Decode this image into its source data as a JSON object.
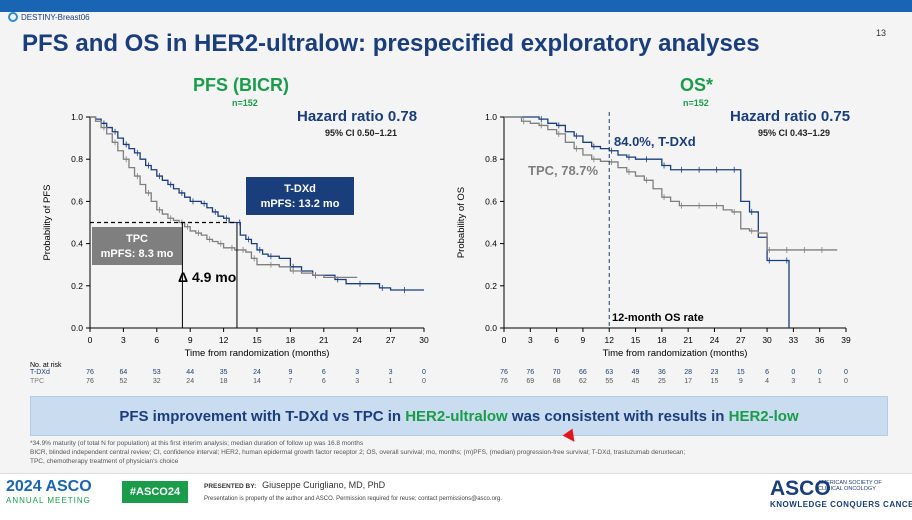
{
  "header": {
    "brand": "DESTINY-Breast06",
    "slide_number": "13",
    "title": "PFS and OS in HER2-ultralow: prespecified exploratory analyses"
  },
  "chart_data": [
    {
      "type": "line",
      "title": "PFS (BICR)",
      "subtitle": "n=152",
      "hazard_ratio": "Hazard ratio 0.78",
      "ci": "95% CI 0.50–1.21",
      "xlabel": "Time from randomization (months)",
      "ylabel": "Probability of PFS",
      "xlim": [
        0,
        30
      ],
      "ylim": [
        0,
        1.0
      ],
      "xticks": [
        0,
        3,
        6,
        9,
        12,
        15,
        18,
        21,
        24,
        27,
        30
      ],
      "yticks": [
        0,
        0.2,
        0.4,
        0.6,
        0.8,
        1.0
      ],
      "series": [
        {
          "name": "T-DXd",
          "color": "#1a3d7c",
          "x": [
            0,
            0.5,
            1,
            1.5,
            2,
            2.5,
            3,
            3.5,
            4,
            4.5,
            5,
            5.5,
            6,
            6.5,
            7,
            7.5,
            8,
            8.5,
            9,
            9.5,
            10,
            10.5,
            11,
            11.5,
            12,
            12.5,
            13.2,
            13.5,
            14,
            14.5,
            15,
            15.5,
            16,
            17,
            18,
            19,
            20,
            21,
            22,
            23,
            24,
            25,
            26,
            27,
            28,
            29,
            30
          ],
          "y": [
            1.0,
            0.99,
            0.97,
            0.95,
            0.93,
            0.9,
            0.87,
            0.85,
            0.83,
            0.8,
            0.77,
            0.75,
            0.72,
            0.7,
            0.68,
            0.66,
            0.64,
            0.62,
            0.6,
            0.6,
            0.59,
            0.57,
            0.55,
            0.53,
            0.52,
            0.5,
            0.5,
            0.44,
            0.42,
            0.4,
            0.37,
            0.35,
            0.34,
            0.33,
            0.29,
            0.27,
            0.25,
            0.25,
            0.23,
            0.21,
            0.21,
            0.21,
            0.19,
            0.18,
            0.18,
            0.18,
            0.18
          ]
        },
        {
          "name": "TPC",
          "color": "#7f7f7f",
          "x": [
            0,
            0.5,
            1,
            1.5,
            2,
            2.5,
            3,
            3.5,
            4,
            4.5,
            5,
            5.5,
            6,
            6.5,
            7,
            7.5,
            8,
            8.3,
            8.5,
            9,
            9.5,
            10,
            10.5,
            11,
            11.5,
            12,
            12.5,
            13,
            13.5,
            14,
            14.5,
            15,
            16,
            17,
            18,
            19,
            20,
            21,
            24
          ],
          "y": [
            1.0,
            0.98,
            0.95,
            0.92,
            0.88,
            0.84,
            0.8,
            0.76,
            0.72,
            0.68,
            0.64,
            0.6,
            0.56,
            0.54,
            0.52,
            0.51,
            0.5,
            0.5,
            0.48,
            0.46,
            0.45,
            0.44,
            0.42,
            0.41,
            0.4,
            0.38,
            0.38,
            0.37,
            0.37,
            0.36,
            0.33,
            0.3,
            0.3,
            0.29,
            0.27,
            0.26,
            0.25,
            0.24,
            0.24
          ]
        }
      ],
      "annotations": {
        "tdxd_label": "T-DXd",
        "tdxd_value": "mPFS: 13.2 mo",
        "tpc_label": "TPC",
        "tpc_value": "mPFS: 8.3 mo",
        "delta": "Δ 4.9 mo"
      },
      "risk_table": {
        "label": "No. at risk",
        "rows": [
          {
            "name": "T-DXd",
            "values": [
              "76",
              "64",
              "53",
              "44",
              "35",
              "24",
              "9",
              "6",
              "3",
              "3",
              "0"
            ]
          },
          {
            "name": "TPC",
            "values": [
              "76",
              "52",
              "32",
              "24",
              "18",
              "14",
              "7",
              "6",
              "3",
              "1",
              "0"
            ]
          }
        ]
      }
    },
    {
      "type": "line",
      "title": "OS*",
      "subtitle": "n=152",
      "hazard_ratio": "Hazard ratio 0.75",
      "ci": "95% CI 0.43–1.29",
      "xlabel": "Time from randomization (months)",
      "ylabel": "Probability of OS",
      "xlim": [
        0,
        39
      ],
      "ylim": [
        0,
        1.0
      ],
      "xticks": [
        0,
        3,
        6,
        9,
        12,
        15,
        18,
        21,
        24,
        27,
        30,
        33,
        36,
        39
      ],
      "yticks": [
        0,
        0.2,
        0.4,
        0.6,
        0.8,
        1.0
      ],
      "series": [
        {
          "name": "T-DXd",
          "color": "#1a3d7c",
          "x": [
            0,
            2,
            4,
            5,
            6,
            7,
            8,
            9,
            10,
            11,
            12,
            13,
            14,
            15,
            16,
            17,
            18,
            19,
            20,
            21,
            22,
            23,
            24,
            25,
            26,
            27,
            28,
            29,
            30,
            31,
            32,
            32.5
          ],
          "y": [
            1.0,
            1.0,
            0.99,
            0.97,
            0.96,
            0.93,
            0.91,
            0.88,
            0.86,
            0.85,
            0.84,
            0.82,
            0.81,
            0.8,
            0.8,
            0.8,
            0.77,
            0.75,
            0.75,
            0.75,
            0.75,
            0.75,
            0.75,
            0.75,
            0.75,
            0.6,
            0.55,
            0.43,
            0.32,
            0.32,
            0.32,
            0.0
          ]
        },
        {
          "name": "TPC",
          "color": "#7f7f7f",
          "x": [
            0,
            1,
            2,
            3,
            4,
            5,
            6,
            7,
            8,
            9,
            10,
            11,
            12,
            13,
            14,
            15,
            16,
            17,
            18,
            19,
            20,
            21,
            22,
            23,
            24,
            25,
            26,
            27,
            28,
            29,
            30,
            31,
            32,
            33,
            34,
            35,
            36,
            37,
            38
          ],
          "y": [
            1.0,
            1.0,
            0.98,
            0.97,
            0.96,
            0.94,
            0.92,
            0.88,
            0.85,
            0.82,
            0.8,
            0.79,
            0.787,
            0.76,
            0.74,
            0.72,
            0.7,
            0.66,
            0.62,
            0.6,
            0.58,
            0.58,
            0.58,
            0.58,
            0.58,
            0.56,
            0.55,
            0.47,
            0.46,
            0.45,
            0.37,
            0.37,
            0.37,
            0.37,
            0.37,
            0.37,
            0.37,
            0.37,
            0.37
          ]
        }
      ],
      "annotations": {
        "tdxd_rate": "84.0%, T-DXd",
        "tpc_rate": "TPC, 78.7%",
        "rate_label": "12-month OS rate"
      },
      "risk_table": {
        "rows": [
          {
            "name": "T-DXd",
            "values": [
              "76",
              "76",
              "70",
              "66",
              "63",
              "49",
              "36",
              "28",
              "23",
              "15",
              "6",
              "0",
              "0",
              "0"
            ]
          },
          {
            "name": "TPC",
            "values": [
              "76",
              "69",
              "68",
              "62",
              "55",
              "45",
              "25",
              "17",
              "15",
              "9",
              "4",
              "3",
              "1",
              "0"
            ]
          }
        ]
      }
    }
  ],
  "banner": {
    "part1": "PFS improvement with T-DXd vs TPC in ",
    "ultralow": "HER2-ultralow",
    "part2": " was consistent with results in ",
    "low": "HER2-low"
  },
  "footnotes": [
    "*34.9% maturity (of total N for population) at this first interim analysis; median duration of follow up was 16.8 months",
    "BICR, blinded independent central review; CI, confidence interval; HER2, human epidermal growth factor receptor 2; OS, overall survival; mo, months; (m)PFS, (median) progression-free survival; T-DXd, trastuzumab deruxtecan;",
    "TPC, chemotherapy treatment of physician's choice"
  ],
  "footer": {
    "meeting_year": "2024 ASCO",
    "meeting_name": "ANNUAL MEETING",
    "hashtag": "#ASCO24",
    "presented_by": "PRESENTED BY:",
    "presenter": "Giuseppe Curigliano, MD, PhD",
    "property": "Presentation is property of the author and ASCO. Permission required for reuse; contact permissions@asco.org.",
    "asco": "ASCO",
    "asco_sub": "AMERICAN SOCIETY OF CLINICAL ONCOLOGY",
    "tagline": "KNOWLEDGE CONQUERS CANCER"
  }
}
